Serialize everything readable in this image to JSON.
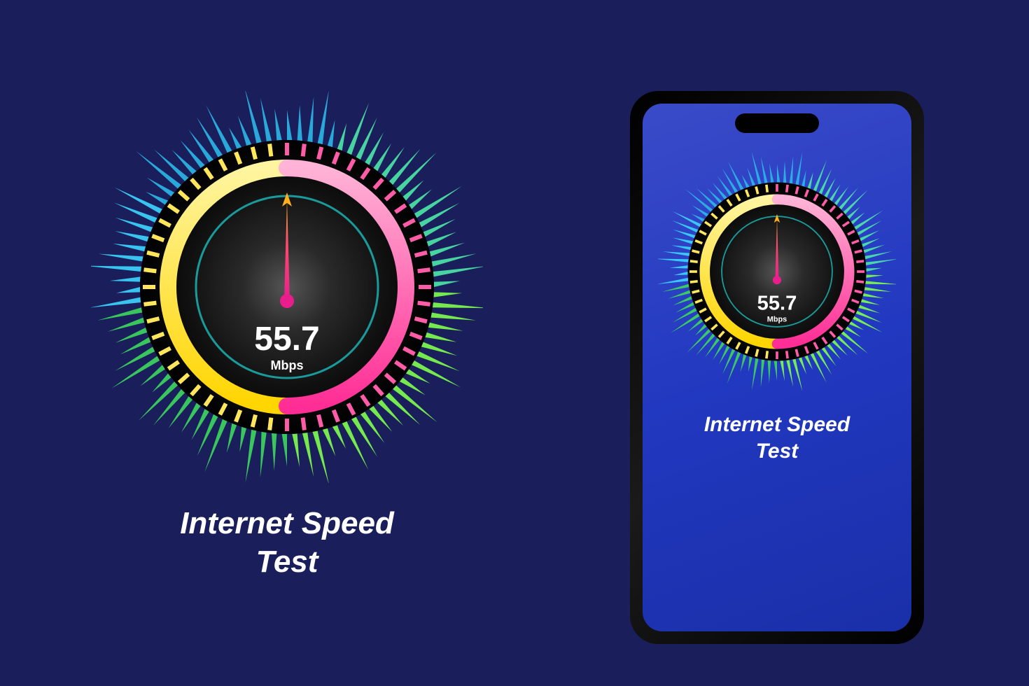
{
  "background_color": "#1a1f5c",
  "gauge": {
    "speed_value": "55.7",
    "speed_unit": "Mbps",
    "title_line1": "Internet Speed",
    "title_line2": "Test",
    "needle_angle_deg": 0,
    "dial_bg_color_outer": "#0a0a0a",
    "dial_bg_color_center": "#4a4a4a",
    "inner_ring_color": "#1a9b9b",
    "arc_yellow_start": "#ffe65c",
    "arc_yellow_end": "#fff08a",
    "arc_pink_start": "#ff5ca8",
    "arc_pink_end": "#ffb3d6",
    "needle_color_top": "#ffb020",
    "needle_color_bottom": "#e91e8c",
    "tick_segments": 52,
    "spike_colors": [
      "#3dd5ff",
      "#2bb8e8",
      "#5cffff",
      "#4de8a8",
      "#3dd85c",
      "#7fff4d",
      "#4dff7f",
      "#3de8b8"
    ],
    "value_fontsize_large": 48,
    "unit_fontsize_large": 18,
    "value_fontsize_small": 26,
    "unit_fontsize_small": 11
  },
  "phone": {
    "body_color": "#000000",
    "screen_gradient_start": "#3a4bc8",
    "screen_gradient_end": "#1a2fa8",
    "notch_color": "#000000"
  }
}
